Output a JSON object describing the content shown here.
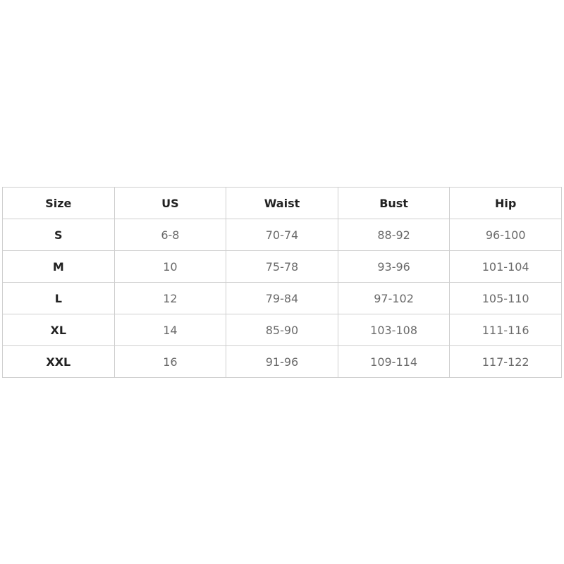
{
  "table": {
    "headers": [
      "Size",
      "US",
      "Waist",
      "Bust",
      "Hip"
    ],
    "rows": [
      [
        "S",
        "6-8",
        "70-74",
        "88-92",
        "96-100"
      ],
      [
        "M",
        "10",
        "75-78",
        "93-96",
        "101-104"
      ],
      [
        "L",
        "12",
        "79-84",
        "97-102",
        "105-110"
      ],
      [
        "XL",
        "14",
        "85-90",
        "103-108",
        "111-116"
      ],
      [
        "XXL",
        "16",
        "91-96",
        "109-114",
        "117-122"
      ]
    ]
  }
}
